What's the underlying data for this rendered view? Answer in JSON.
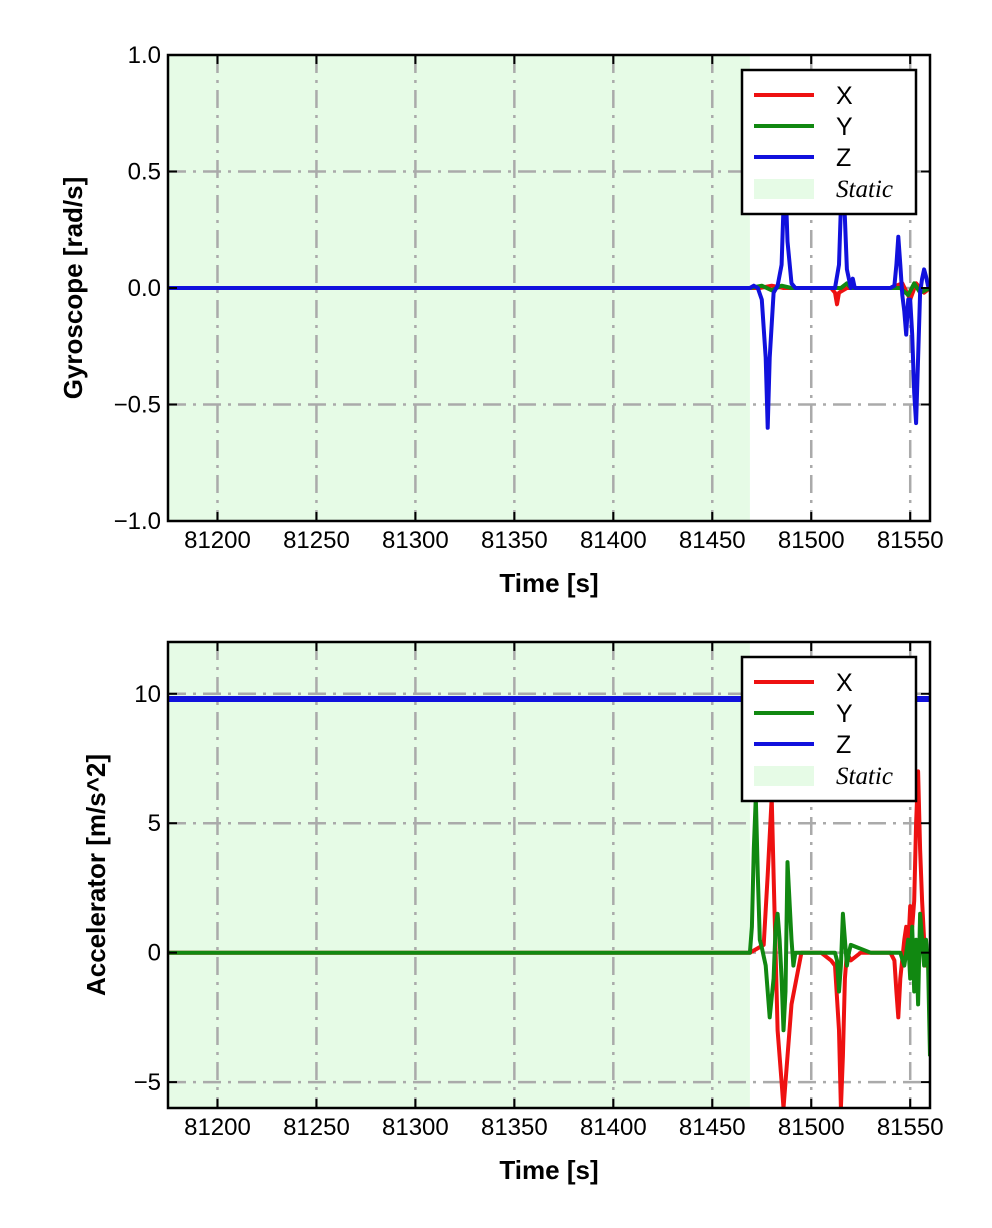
{
  "chart_data": [
    {
      "type": "line",
      "title": "",
      "xlabel": "Time [s]",
      "ylabel": "Gyroscope [rad/s]",
      "xlim": [
        81175,
        81560
      ],
      "ylim": [
        -1.0,
        1.0
      ],
      "xticks": [
        81200,
        81250,
        81300,
        81350,
        81400,
        81450,
        81500,
        81550
      ],
      "xtick_labels": [
        "81200",
        "81250",
        "81300",
        "81350",
        "81400",
        "81450",
        "81500",
        "81550"
      ],
      "yticks": [
        -1.0,
        -0.5,
        0.0,
        0.5,
        1.0
      ],
      "ytick_labels": [
        "−1.0",
        "−0.5",
        "0.0",
        "0.5",
        "1.0"
      ],
      "grid": true,
      "legend_position": "top-right",
      "static_region": {
        "label": "Static",
        "x": [
          81175,
          81469
        ],
        "color": "#e6fbe6"
      },
      "series": [
        {
          "name": "X",
          "color": "#ee1111",
          "x": [
            81175,
            81469,
            81474,
            81480,
            81486,
            81490,
            81510,
            81512,
            81513,
            81514,
            81518,
            81540,
            81546,
            81550,
            81553,
            81557,
            81560
          ],
          "y": [
            0,
            0,
            0,
            0.01,
            0,
            0,
            0,
            -0.02,
            -0.07,
            -0.02,
            0,
            0,
            0.02,
            -0.05,
            0.02,
            -0.02,
            0
          ]
        },
        {
          "name": "Y",
          "color": "#118811",
          "x": [
            81175,
            81469,
            81475,
            81480,
            81485,
            81490,
            81515,
            81518,
            81520,
            81545,
            81549,
            81552,
            81555,
            81560
          ],
          "y": [
            0,
            0,
            0.01,
            -0.01,
            0.01,
            0,
            0,
            0.02,
            0,
            0,
            -0.03,
            0.02,
            -0.02,
            0
          ],
          "y_note_skip": true
        },
        {
          "name": "Z",
          "color": "#1111dd",
          "x": [
            81175,
            81469,
            81471,
            81473,
            81475,
            81477,
            81478,
            81479,
            81481,
            81483,
            81485,
            81486,
            81487,
            81488,
            81490,
            81492,
            81512,
            81514,
            81515,
            81516,
            81517,
            81518,
            81520,
            81521,
            81522,
            81524,
            81540,
            81542,
            81543,
            81544,
            81545,
            81546,
            81547,
            81548,
            81549,
            81550,
            81551,
            81552,
            81553,
            81554,
            81555,
            81556,
            81557,
            81558,
            81559,
            81560
          ],
          "y": [
            0,
            0,
            0.01,
            0,
            -0.05,
            -0.3,
            -0.6,
            -0.3,
            -0.02,
            0.01,
            0.1,
            0.35,
            0.45,
            0.2,
            0.02,
            0,
            0,
            0.1,
            0.35,
            0.45,
            0.3,
            0.08,
            0,
            0.04,
            0,
            0,
            0,
            0.01,
            0.1,
            0.22,
            0.1,
            -0.03,
            -0.1,
            -0.2,
            -0.05,
            -0.05,
            -0.2,
            -0.45,
            -0.58,
            -0.3,
            -0.02,
            0.04,
            0.08,
            0.05,
            0.01,
            0
          ]
        },
        {
          "name": "Static",
          "color": "#e6fbe6"
        }
      ]
    },
    {
      "type": "line",
      "title": "",
      "xlabel": "Time [s]",
      "ylabel": "Accelerator [m/s^2]",
      "xlim": [
        81175,
        81560
      ],
      "ylim": [
        -6,
        12
      ],
      "xticks": [
        81200,
        81250,
        81300,
        81350,
        81400,
        81450,
        81500,
        81550
      ],
      "xtick_labels": [
        "81200",
        "81250",
        "81300",
        "81350",
        "81400",
        "81450",
        "81500",
        "81550"
      ],
      "yticks": [
        -5,
        0,
        5,
        10
      ],
      "ytick_labels": [
        "−5",
        "0",
        "5",
        "10"
      ],
      "grid": true,
      "legend_position": "top-right",
      "static_region": {
        "label": "Static",
        "x": [
          81175,
          81469
        ],
        "color": "#e6fbe6"
      },
      "series": [
        {
          "name": "X",
          "color": "#ee1111",
          "x": [
            81175,
            81469,
            81476,
            81478,
            81480,
            81481,
            81483,
            81485,
            81486,
            81488,
            81490,
            81495,
            81505,
            81510,
            81512,
            81514,
            81515,
            81516,
            81517,
            81518,
            81520,
            81525,
            81540,
            81542,
            81543,
            81544,
            81545,
            81547,
            81548,
            81549,
            81550,
            81551,
            81552,
            81553,
            81554,
            81555,
            81556,
            81557,
            81558,
            81559,
            81560
          ],
          "y": [
            0,
            0,
            0.3,
            3,
            6,
            3,
            -3,
            -5,
            -6,
            -4,
            -2,
            0,
            0,
            -0.3,
            -0.5,
            -3,
            -6,
            -4,
            -1,
            0,
            -0.3,
            0,
            0,
            -0.3,
            -1.5,
            -2.5,
            -1,
            0.5,
            1,
            0.2,
            1.8,
            1,
            2,
            5,
            7,
            4,
            2,
            0.5,
            -0.5,
            0,
            -1
          ]
        },
        {
          "name": "Y",
          "color": "#118811",
          "x": [
            81175,
            81469,
            81470,
            81471,
            81472,
            81473,
            81474,
            81475,
            81477,
            81479,
            81481,
            81482,
            81483,
            81484,
            81485,
            81486,
            81487,
            81488,
            81490,
            81491,
            81492,
            81500,
            81512,
            81513,
            81514,
            81515,
            81516,
            81517,
            81518,
            81519,
            81520,
            81530,
            81545,
            81547,
            81549,
            81550,
            81551,
            81552,
            81553,
            81554,
            81555,
            81556,
            81557,
            81558,
            81559,
            81560
          ],
          "y": [
            0,
            0,
            1,
            4,
            6,
            3,
            0.5,
            0.2,
            -0.5,
            -2.5,
            -1,
            1,
            1.5,
            0.5,
            -1,
            -3,
            -1.5,
            3.5,
            0.5,
            -0.5,
            0,
            0,
            0,
            -0.3,
            -1.5,
            -0.5,
            1.5,
            0.5,
            -0.5,
            0,
            0.3,
            0,
            0,
            -0.5,
            0.5,
            -1,
            1,
            -1.5,
            0.5,
            -2,
            1.5,
            0.5,
            -0.5,
            0.5,
            -0.3,
            -4
          ]
        },
        {
          "name": "Z",
          "color": "#1111dd",
          "x": [
            81175,
            81560
          ],
          "y": [
            9.8,
            9.8
          ]
        },
        {
          "name": "Static",
          "color": "#e6fbe6"
        }
      ]
    }
  ]
}
